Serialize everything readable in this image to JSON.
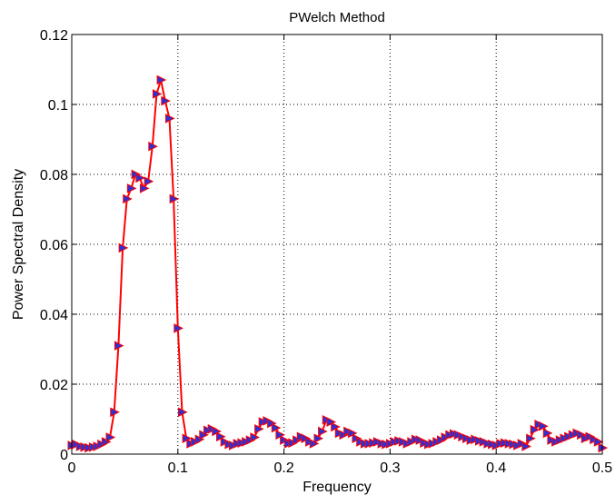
{
  "chart_data": {
    "type": "line",
    "title": "PWelch Method",
    "xlabel": "Frequency",
    "ylabel": "Power Spectral Density",
    "xlim": [
      0,
      0.5
    ],
    "ylim": [
      0,
      0.12
    ],
    "grid": true,
    "x_ticks": [
      0,
      0.1,
      0.2,
      0.3,
      0.4,
      0.5
    ],
    "x_tick_labels": [
      "0",
      "0.1",
      "0.2",
      "0.3",
      "0.4",
      "0.5"
    ],
    "y_ticks": [
      0,
      0.02,
      0.04,
      0.06,
      0.08,
      0.1,
      0.12
    ],
    "y_tick_labels": [
      "0",
      "0.02",
      "0.04",
      "0.06",
      "0.08",
      "0.1",
      "0.12"
    ],
    "line_color": "#ff0000",
    "marker": "triangle-right",
    "marker_face_color": "#3030d0",
    "marker_edge_color": "#ff0000",
    "series": [
      {
        "x": [
          0.0,
          0.004,
          0.008,
          0.012,
          0.016,
          0.02,
          0.024,
          0.028,
          0.032,
          0.036,
          0.04,
          0.044,
          0.048,
          0.052,
          0.056,
          0.06,
          0.064,
          0.068,
          0.072,
          0.076,
          0.08,
          0.084,
          0.088,
          0.092,
          0.096,
          0.1,
          0.104,
          0.108,
          0.112,
          0.116,
          0.12,
          0.124,
          0.128,
          0.132,
          0.136,
          0.14,
          0.144,
          0.148,
          0.152,
          0.156,
          0.16,
          0.164,
          0.168,
          0.172,
          0.176,
          0.18,
          0.184,
          0.188,
          0.192,
          0.196,
          0.2,
          0.204,
          0.208,
          0.212,
          0.216,
          0.22,
          0.224,
          0.228,
          0.232,
          0.236,
          0.24,
          0.244,
          0.248,
          0.252,
          0.256,
          0.26,
          0.264,
          0.268,
          0.272,
          0.276,
          0.28,
          0.284,
          0.288,
          0.292,
          0.296,
          0.3,
          0.304,
          0.308,
          0.312,
          0.316,
          0.32,
          0.324,
          0.328,
          0.332,
          0.336,
          0.34,
          0.344,
          0.348,
          0.352,
          0.356,
          0.36,
          0.364,
          0.368,
          0.372,
          0.376,
          0.38,
          0.384,
          0.388,
          0.392,
          0.396,
          0.4,
          0.404,
          0.408,
          0.412,
          0.416,
          0.42,
          0.424,
          0.428,
          0.432,
          0.436,
          0.44,
          0.444,
          0.448,
          0.452,
          0.456,
          0.46,
          0.464,
          0.468,
          0.472,
          0.476,
          0.48,
          0.484,
          0.488,
          0.492,
          0.496,
          0.5
        ],
        "y": [
          0.0025,
          0.0028,
          0.0022,
          0.002,
          0.0018,
          0.002,
          0.0022,
          0.0028,
          0.0035,
          0.0048,
          0.012,
          0.031,
          0.059,
          0.073,
          0.076,
          0.08,
          0.079,
          0.076,
          0.078,
          0.088,
          0.103,
          0.107,
          0.101,
          0.096,
          0.073,
          0.036,
          0.012,
          0.0045,
          0.003,
          0.0035,
          0.0042,
          0.0055,
          0.0068,
          0.0072,
          0.0065,
          0.005,
          0.0035,
          0.0028,
          0.0025,
          0.003,
          0.0032,
          0.0035,
          0.004,
          0.0048,
          0.0072,
          0.0092,
          0.0095,
          0.0088,
          0.0075,
          0.0055,
          0.004,
          0.003,
          0.0032,
          0.004,
          0.005,
          0.0045,
          0.0035,
          0.003,
          0.0045,
          0.0065,
          0.0098,
          0.0092,
          0.0078,
          0.006,
          0.0055,
          0.0065,
          0.006,
          0.0045,
          0.0035,
          0.003,
          0.003,
          0.0032,
          0.0035,
          0.003,
          0.0028,
          0.003,
          0.0035,
          0.0038,
          0.0035,
          0.003,
          0.0035,
          0.0042,
          0.004,
          0.0032,
          0.0028,
          0.003,
          0.0035,
          0.004,
          0.0048,
          0.0055,
          0.0058,
          0.0055,
          0.005,
          0.0045,
          0.004,
          0.0042,
          0.0038,
          0.0035,
          0.003,
          0.0028,
          0.0025,
          0.003,
          0.0032,
          0.003,
          0.0028,
          0.0025,
          0.003,
          0.0022,
          0.0045,
          0.007,
          0.0085,
          0.008,
          0.006,
          0.004,
          0.0035,
          0.004,
          0.0045,
          0.005,
          0.0055,
          0.006,
          0.0055,
          0.0045,
          0.005,
          0.0042,
          0.0035,
          0.0018
        ]
      }
    ]
  }
}
